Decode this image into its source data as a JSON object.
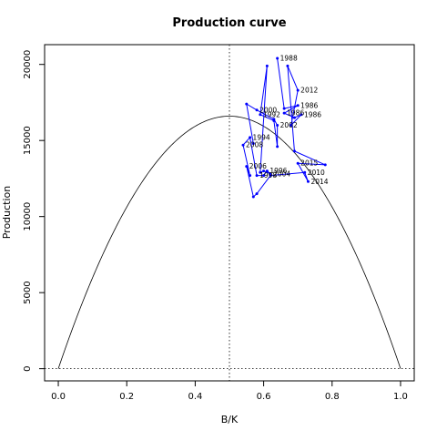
{
  "chart_data": {
    "type": "line",
    "title": "Production curve",
    "xlabel": "B/K",
    "ylabel": "Production",
    "xlim": [
      -0.04,
      1.04
    ],
    "ylim": [
      -800,
      21300
    ],
    "x_ticks": [
      0,
      0.2,
      0.4,
      0.6,
      0.8,
      1
    ],
    "x_tick_labels": [
      "0.0",
      "0.2",
      "0.4",
      "0.6",
      "0.8",
      "1.0"
    ],
    "y_ticks": [
      0,
      5000,
      10000,
      15000,
      20000
    ],
    "y_tick_labels": [
      "0",
      "5000",
      "10000",
      "15000",
      "20000"
    ],
    "grid": false,
    "reference_lines": {
      "vertical_x": 0.5,
      "horizontal_y": 0
    },
    "curve": {
      "type": "parabola",
      "r": 0.4,
      "k": 166000,
      "color": "#000000"
    },
    "trajectory_color": "#0000ff",
    "trajectory": [
      {
        "x": 0.64,
        "y": 20400,
        "label": "1988"
      },
      {
        "x": 0.66,
        "y": 17100,
        "label": ""
      },
      {
        "x": 0.7,
        "y": 17300,
        "label": "1986"
      },
      {
        "x": 0.66,
        "y": 16800,
        "label": "1986"
      },
      {
        "x": 0.69,
        "y": 16500,
        "label": ""
      },
      {
        "x": 0.71,
        "y": 16700,
        "label": "1986"
      },
      {
        "x": 0.68,
        "y": 16000,
        "label": ""
      },
      {
        "x": 0.7,
        "y": 18300,
        "label": "2012"
      },
      {
        "x": 0.67,
        "y": 19900,
        "label": ""
      },
      {
        "x": 0.69,
        "y": 14300,
        "label": ""
      },
      {
        "x": 0.78,
        "y": 13400,
        "label": ""
      },
      {
        "x": 0.7,
        "y": 13500,
        "label": "2015"
      },
      {
        "x": 0.73,
        "y": 12300,
        "label": "2014"
      },
      {
        "x": 0.72,
        "y": 12900,
        "label": "2010"
      },
      {
        "x": 0.62,
        "y": 12700,
        "label": ""
      },
      {
        "x": 0.58,
        "y": 11500,
        "label": ""
      },
      {
        "x": 0.57,
        "y": 11300,
        "label": ""
      },
      {
        "x": 0.55,
        "y": 13300,
        "label": "2006"
      },
      {
        "x": 0.56,
        "y": 12700,
        "label": ""
      },
      {
        "x": 0.54,
        "y": 14700,
        "label": "2008"
      },
      {
        "x": 0.56,
        "y": 15200,
        "label": "1994"
      },
      {
        "x": 0.58,
        "y": 12700,
        "label": "1998"
      },
      {
        "x": 0.6,
        "y": 12700,
        "label": ""
      },
      {
        "x": 0.61,
        "y": 13000,
        "label": "1996"
      },
      {
        "x": 0.62,
        "y": 12800,
        "label": "2004"
      },
      {
        "x": 0.6,
        "y": 13000,
        "label": ""
      },
      {
        "x": 0.59,
        "y": 12900,
        "label": ""
      },
      {
        "x": 0.61,
        "y": 19900,
        "label": ""
      },
      {
        "x": 0.59,
        "y": 16700,
        "label": "1992"
      },
      {
        "x": 0.63,
        "y": 16300,
        "label": ""
      },
      {
        "x": 0.64,
        "y": 14600,
        "label": ""
      },
      {
        "x": 0.64,
        "y": 16000,
        "label": "2002"
      },
      {
        "x": 0.63,
        "y": 16400,
        "label": ""
      },
      {
        "x": 0.58,
        "y": 17000,
        "label": "2000"
      },
      {
        "x": 0.55,
        "y": 17400,
        "label": ""
      },
      {
        "x": 0.57,
        "y": 14800,
        "label": ""
      }
    ]
  }
}
